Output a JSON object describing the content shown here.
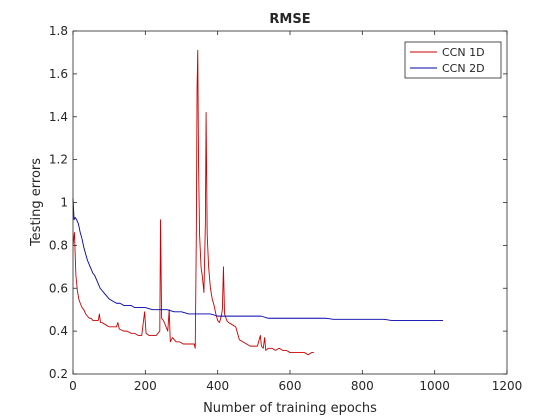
{
  "chart_data": {
    "type": "line",
    "title": "RMSE",
    "xlabel": "Number of training epochs",
    "ylabel": "Testing errors",
    "xlim": [
      0,
      1200
    ],
    "ylim": [
      0.2,
      1.8
    ],
    "xticks": [
      0,
      200,
      400,
      600,
      800,
      1000,
      1200
    ],
    "yticks": [
      0.2,
      0.4,
      0.6,
      0.8,
      1,
      1.2,
      1.4,
      1.6,
      1.8
    ],
    "grid": false,
    "legend_position": "top-right",
    "series": [
      {
        "name": "CCN 1D",
        "color": "#cc0000",
        "points": [
          [
            0,
            0.8
          ],
          [
            4,
            0.86
          ],
          [
            8,
            0.66
          ],
          [
            12,
            0.59
          ],
          [
            16,
            0.55
          ],
          [
            20,
            0.53
          ],
          [
            25,
            0.51
          ],
          [
            30,
            0.5
          ],
          [
            35,
            0.48
          ],
          [
            40,
            0.47
          ],
          [
            45,
            0.46
          ],
          [
            50,
            0.46
          ],
          [
            55,
            0.45
          ],
          [
            60,
            0.45
          ],
          [
            65,
            0.45
          ],
          [
            70,
            0.45
          ],
          [
            73,
            0.48
          ],
          [
            76,
            0.44
          ],
          [
            80,
            0.44
          ],
          [
            90,
            0.43
          ],
          [
            100,
            0.42
          ],
          [
            110,
            0.42
          ],
          [
            120,
            0.42
          ],
          [
            124,
            0.44
          ],
          [
            128,
            0.41
          ],
          [
            140,
            0.4
          ],
          [
            150,
            0.4
          ],
          [
            160,
            0.39
          ],
          [
            170,
            0.39
          ],
          [
            180,
            0.38
          ],
          [
            190,
            0.38
          ],
          [
            198,
            0.49
          ],
          [
            202,
            0.39
          ],
          [
            210,
            0.38
          ],
          [
            220,
            0.38
          ],
          [
            230,
            0.38
          ],
          [
            240,
            0.4
          ],
          [
            242,
            0.92
          ],
          [
            245,
            0.46
          ],
          [
            250,
            0.45
          ],
          [
            255,
            0.43
          ],
          [
            262,
            0.4
          ],
          [
            266,
            0.5
          ],
          [
            269,
            0.35
          ],
          [
            275,
            0.37
          ],
          [
            285,
            0.35
          ],
          [
            295,
            0.35
          ],
          [
            305,
            0.34
          ],
          [
            315,
            0.34
          ],
          [
            325,
            0.34
          ],
          [
            335,
            0.34
          ],
          [
            338,
            0.32
          ],
          [
            341,
            0.85
          ],
          [
            343,
            1.53
          ],
          [
            345,
            1.71
          ],
          [
            347,
            1.2
          ],
          [
            350,
            0.85
          ],
          [
            354,
            0.7
          ],
          [
            358,
            0.65
          ],
          [
            362,
            0.58
          ],
          [
            366,
            0.9
          ],
          [
            368,
            1.42
          ],
          [
            371,
            0.85
          ],
          [
            375,
            0.7
          ],
          [
            380,
            0.6
          ],
          [
            385,
            0.55
          ],
          [
            390,
            0.52
          ],
          [
            395,
            0.48
          ],
          [
            400,
            0.45
          ],
          [
            405,
            0.44
          ],
          [
            410,
            0.47
          ],
          [
            413,
            0.5
          ],
          [
            416,
            0.7
          ],
          [
            419,
            0.48
          ],
          [
            425,
            0.45
          ],
          [
            430,
            0.44
          ],
          [
            440,
            0.43
          ],
          [
            450,
            0.42
          ],
          [
            460,
            0.36
          ],
          [
            470,
            0.35
          ],
          [
            480,
            0.34
          ],
          [
            490,
            0.33
          ],
          [
            500,
            0.33
          ],
          [
            510,
            0.33
          ],
          [
            518,
            0.38
          ],
          [
            521,
            0.33
          ],
          [
            526,
            0.32
          ],
          [
            530,
            0.37
          ],
          [
            533,
            0.31
          ],
          [
            540,
            0.32
          ],
          [
            550,
            0.32
          ],
          [
            560,
            0.31
          ],
          [
            570,
            0.32
          ],
          [
            580,
            0.31
          ],
          [
            590,
            0.31
          ],
          [
            600,
            0.3
          ],
          [
            610,
            0.3
          ],
          [
            620,
            0.3
          ],
          [
            630,
            0.3
          ],
          [
            640,
            0.3
          ],
          [
            650,
            0.29
          ],
          [
            660,
            0.3
          ],
          [
            666,
            0.3
          ]
        ]
      },
      {
        "name": "CCN 2D",
        "color": "#0000aa",
        "points": [
          [
            0,
            1.02
          ],
          [
            3,
            0.92
          ],
          [
            6,
            0.93
          ],
          [
            10,
            0.92
          ],
          [
            15,
            0.9
          ],
          [
            20,
            0.86
          ],
          [
            25,
            0.83
          ],
          [
            30,
            0.79
          ],
          [
            35,
            0.76
          ],
          [
            40,
            0.73
          ],
          [
            45,
            0.71
          ],
          [
            50,
            0.69
          ],
          [
            55,
            0.67
          ],
          [
            60,
            0.66
          ],
          [
            65,
            0.64
          ],
          [
            70,
            0.62
          ],
          [
            75,
            0.6
          ],
          [
            80,
            0.59
          ],
          [
            85,
            0.58
          ],
          [
            90,
            0.57
          ],
          [
            95,
            0.56
          ],
          [
            100,
            0.55
          ],
          [
            110,
            0.54
          ],
          [
            120,
            0.53
          ],
          [
            130,
            0.53
          ],
          [
            140,
            0.52
          ],
          [
            150,
            0.52
          ],
          [
            160,
            0.52
          ],
          [
            170,
            0.51
          ],
          [
            180,
            0.51
          ],
          [
            190,
            0.51
          ],
          [
            200,
            0.51
          ],
          [
            220,
            0.5
          ],
          [
            240,
            0.5
          ],
          [
            260,
            0.5
          ],
          [
            280,
            0.49
          ],
          [
            300,
            0.49
          ],
          [
            320,
            0.48
          ],
          [
            340,
            0.48
          ],
          [
            360,
            0.48
          ],
          [
            380,
            0.48
          ],
          [
            400,
            0.47
          ],
          [
            420,
            0.47
          ],
          [
            440,
            0.47
          ],
          [
            460,
            0.47
          ],
          [
            480,
            0.47
          ],
          [
            500,
            0.47
          ],
          [
            520,
            0.47
          ],
          [
            540,
            0.46
          ],
          [
            560,
            0.46
          ],
          [
            580,
            0.46
          ],
          [
            600,
            0.46
          ],
          [
            620,
            0.46
          ],
          [
            640,
            0.46
          ],
          [
            660,
            0.46
          ],
          [
            680,
            0.46
          ],
          [
            700,
            0.46
          ],
          [
            720,
            0.455
          ],
          [
            740,
            0.455
          ],
          [
            760,
            0.455
          ],
          [
            780,
            0.455
          ],
          [
            800,
            0.455
          ],
          [
            820,
            0.455
          ],
          [
            840,
            0.455
          ],
          [
            860,
            0.455
          ],
          [
            880,
            0.45
          ],
          [
            900,
            0.45
          ],
          [
            920,
            0.45
          ],
          [
            940,
            0.45
          ],
          [
            960,
            0.45
          ],
          [
            980,
            0.45
          ],
          [
            1000,
            0.45
          ],
          [
            1020,
            0.45
          ],
          [
            1023,
            0.45
          ]
        ]
      }
    ]
  }
}
